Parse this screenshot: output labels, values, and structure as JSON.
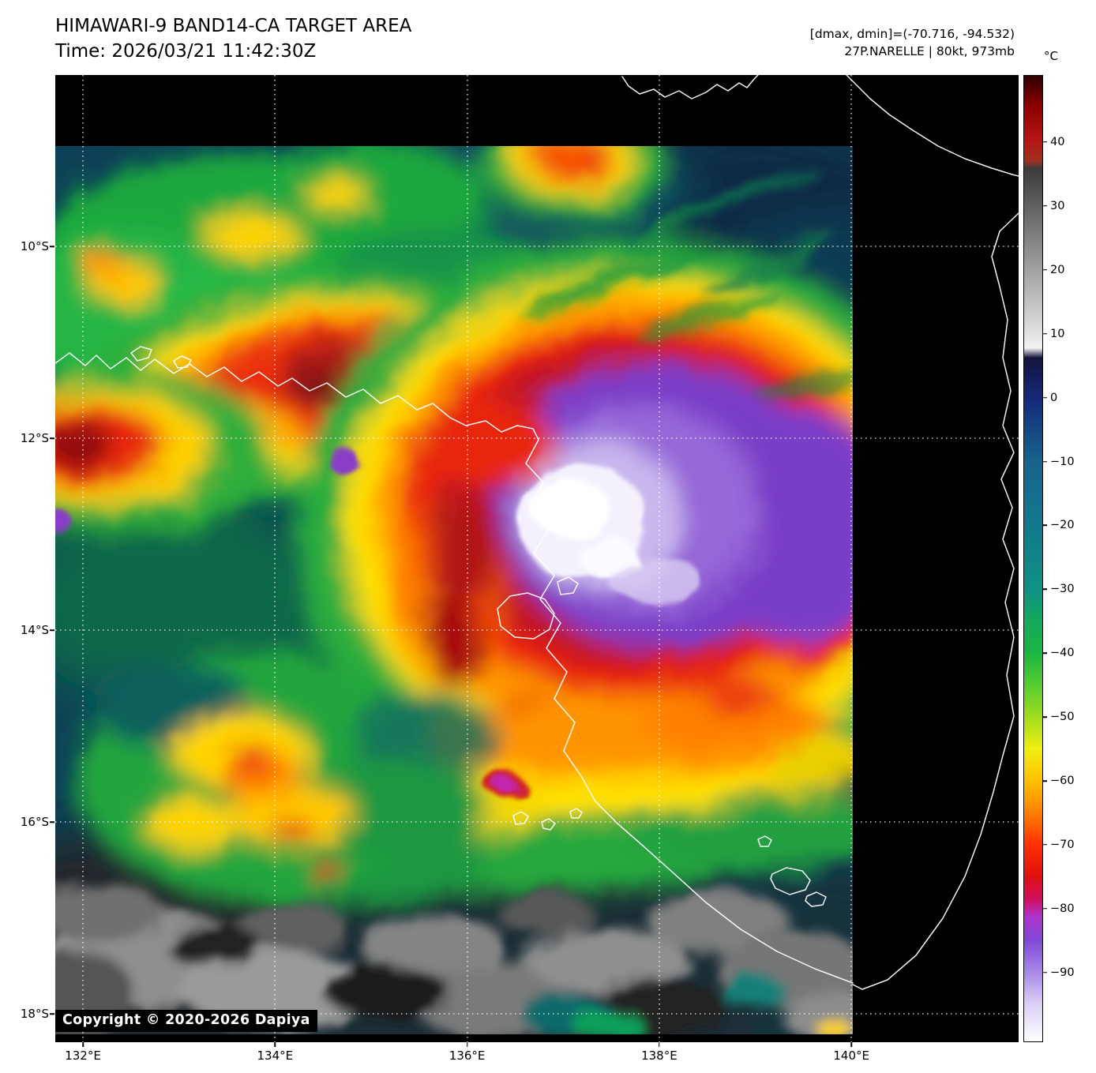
{
  "header": {
    "title": "HIMAWARI-9 BAND14-CA TARGET AREA",
    "time": "Time: 2026/03/21 11:42:30Z",
    "dmax_dmin": "[dmax, dmin]=(-70.716, -94.532)",
    "storm": "27P.NARELLE | 80kt, 973mb"
  },
  "map": {
    "copyright": "Copyright © 2020-2026 Dapiya",
    "x_tick_labels": [
      "132°E",
      "134°E",
      "136°E",
      "138°E",
      "140°E"
    ],
    "y_tick_labels": [
      "10°S",
      "12°S",
      "14°S",
      "16°S",
      "18°S"
    ]
  },
  "colorbar": {
    "unit": "°C",
    "ticks": [
      {
        "label": "40",
        "value": 40
      },
      {
        "label": "30",
        "value": 30
      },
      {
        "label": "20",
        "value": 20
      },
      {
        "label": "10",
        "value": 10
      },
      {
        "label": "0",
        "value": 0
      },
      {
        "label": "−10",
        "value": -10
      },
      {
        "label": "−20",
        "value": -20
      },
      {
        "label": "−30",
        "value": -30
      },
      {
        "label": "−40",
        "value": -40
      },
      {
        "label": "−50",
        "value": -50
      },
      {
        "label": "−60",
        "value": -60
      },
      {
        "label": "−70",
        "value": -70
      },
      {
        "label": "−80",
        "value": -80
      },
      {
        "label": "−90",
        "value": -90
      }
    ],
    "scale_top_temp": 50.5,
    "scale_range": 151.4,
    "stops": [
      {
        "pct": 0,
        "color": "#2e0000"
      },
      {
        "pct": 3,
        "color": "#8a0000"
      },
      {
        "pct": 6.5,
        "color": "#b41414"
      },
      {
        "pct": 8.8,
        "color": "#a03020"
      },
      {
        "pct": 9.6,
        "color": "#3c3c3c"
      },
      {
        "pct": 26.8,
        "color": "#e2e2e2"
      },
      {
        "pct": 28.2,
        "color": "#f2f2f2"
      },
      {
        "pct": 29.2,
        "color": "#14143c"
      },
      {
        "pct": 33.4,
        "color": "#15297a"
      },
      {
        "pct": 40.0,
        "color": "#17648c"
      },
      {
        "pct": 46.6,
        "color": "#12798c"
      },
      {
        "pct": 53.2,
        "color": "#0f9184"
      },
      {
        "pct": 56.4,
        "color": "#16a85c"
      },
      {
        "pct": 59.8,
        "color": "#1cb442"
      },
      {
        "pct": 63.0,
        "color": "#54cc30"
      },
      {
        "pct": 66.4,
        "color": "#a0dc1e"
      },
      {
        "pct": 69.7,
        "color": "#f0ee12"
      },
      {
        "pct": 73.0,
        "color": "#ffc002"
      },
      {
        "pct": 76.3,
        "color": "#ff8000"
      },
      {
        "pct": 79.6,
        "color": "#ff3000"
      },
      {
        "pct": 82.9,
        "color": "#e01010"
      },
      {
        "pct": 85.3,
        "color": "#d01060"
      },
      {
        "pct": 87.0,
        "color": "#b030c8"
      },
      {
        "pct": 89.5,
        "color": "#8048d8"
      },
      {
        "pct": 92.8,
        "color": "#a888e8"
      },
      {
        "pct": 96.0,
        "color": "#d9cdf5"
      },
      {
        "pct": 100,
        "color": "#ffffff"
      }
    ]
  }
}
